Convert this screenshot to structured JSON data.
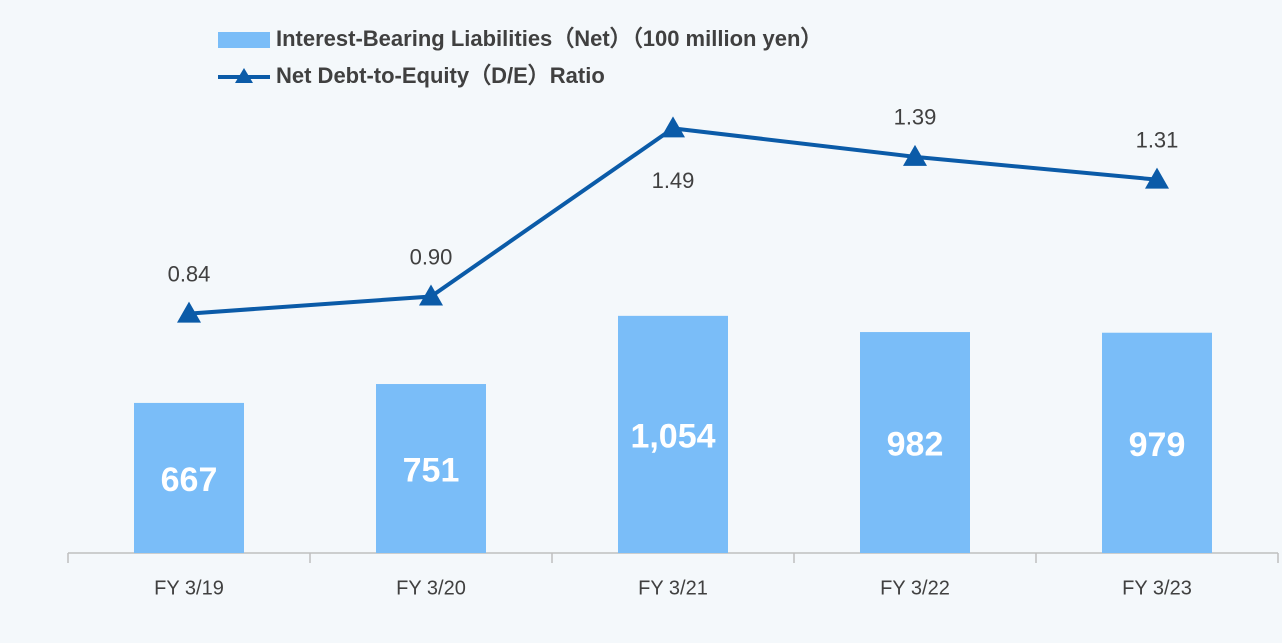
{
  "chart_data": {
    "type": "combo",
    "categories": [
      "FY 3/19",
      "FY 3/20",
      "FY 3/21",
      "FY 3/22",
      "FY 3/23"
    ],
    "series": [
      {
        "name": "Interest-Bearing Liabilities（Net）（100 million yen）",
        "type": "bar",
        "color": "#7abdf8",
        "values": [
          667,
          751,
          1054,
          982,
          979
        ],
        "value_labels": [
          "667",
          "751",
          "1,054",
          "982",
          "979"
        ]
      },
      {
        "name": "Net Debt-to-Equity（D/E）Ratio",
        "type": "line",
        "axis": "y2",
        "color": "#0b5ba8",
        "values": [
          0.84,
          0.9,
          1.49,
          1.39,
          1.31
        ],
        "value_labels": [
          "0.84",
          "0.90",
          "1.49",
          "1.39",
          "1.31"
        ]
      }
    ],
    "ylim": [
      0,
      2280
    ],
    "y2lim": [
      0,
      1.8
    ],
    "legend": "top"
  }
}
